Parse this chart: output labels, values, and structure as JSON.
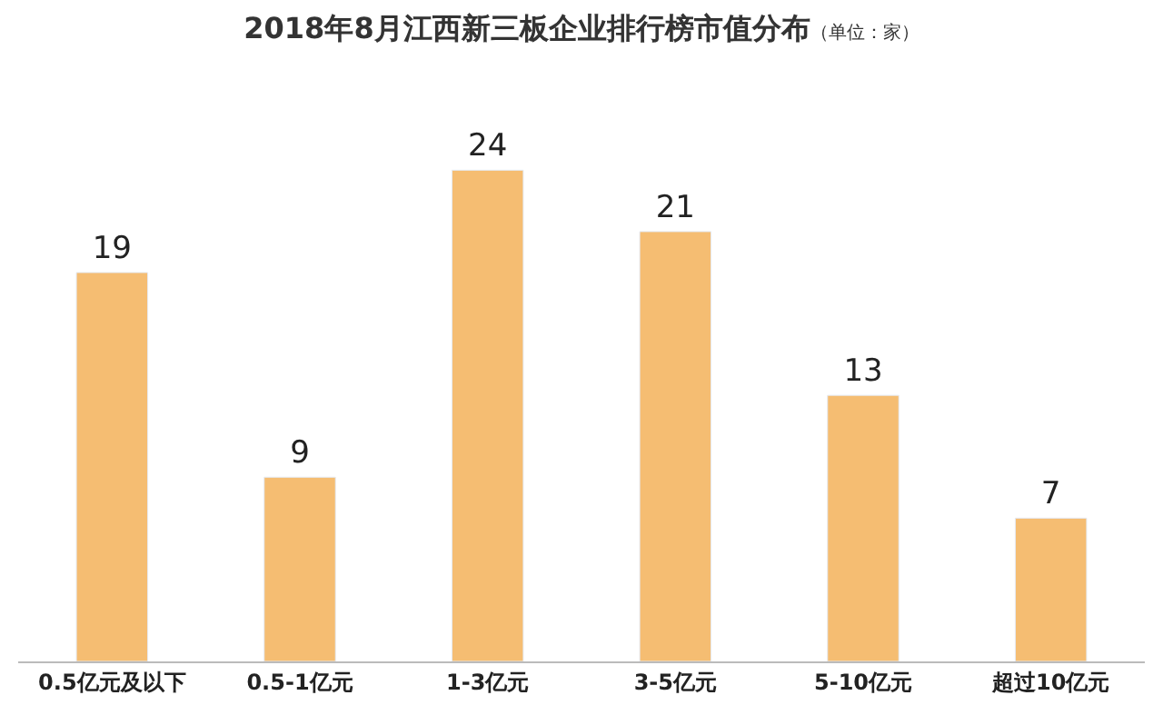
{
  "chart_data": {
    "type": "bar",
    "title": "2018年8月江西新三板企业排行榜市值分布",
    "subtitle": "（单位：家）",
    "categories": [
      "0.5亿元及以下",
      "0.5-1亿元",
      "1-3亿元",
      "3-5亿元",
      "5-10亿元",
      "超过10亿元"
    ],
    "values": [
      19,
      9,
      24,
      21,
      13,
      7
    ],
    "color": "#f5bd72",
    "data_labels": true
  }
}
